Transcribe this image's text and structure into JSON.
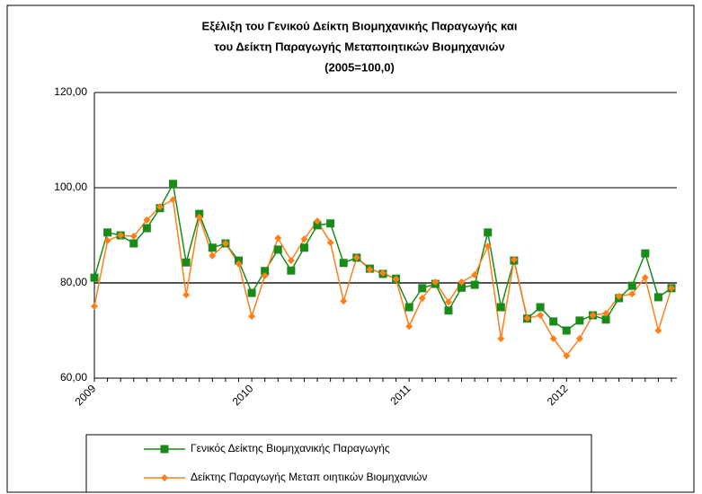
{
  "chart_data": {
    "type": "line",
    "title": [
      "Εξέλιξη του Γενικού Δείκτη Βιομηχανικής Παραγωγής και",
      "του Δείκτη Παραγωγής Μεταποιητικών Βιομηχανιών",
      "(2005=100,0)"
    ],
    "categories": [
      "2009",
      null,
      null,
      null,
      null,
      null,
      null,
      null,
      null,
      null,
      null,
      null,
      "2010",
      null,
      null,
      null,
      null,
      null,
      null,
      null,
      null,
      null,
      null,
      null,
      "2011",
      null,
      null,
      null,
      null,
      null,
      null,
      null,
      null,
      null,
      null,
      null,
      "2012",
      null,
      null,
      null,
      null,
      null,
      null,
      null,
      null
    ],
    "series": [
      {
        "name": "Γενικός Δείκτης Βιομηχανικής Παραγωγής",
        "color": "#1a8a1a",
        "marker": "square",
        "values": [
          81.1,
          90.6,
          90,
          88.3,
          91.5,
          95.7,
          100.8,
          84.3,
          94.5,
          87.4,
          88.3,
          84.7,
          77.9,
          82.5,
          87,
          82.6,
          87.4,
          92.1,
          92.5,
          84.2,
          85.3,
          83,
          81.9,
          80.9,
          74.9,
          78.9,
          79.8,
          74.2,
          79,
          79.6,
          90.6,
          74.9,
          84.7,
          72.5,
          74.9,
          71.9,
          70,
          72.1,
          73.2,
          72.3,
          76.8,
          79.4,
          86.2,
          77,
          78.9
        ]
      },
      {
        "name": "Δείκτης Παραγωγής Μεταπ οιητικών Βιομηχανιών",
        "color": "#ff7f1a",
        "marker": "diamond",
        "values": [
          75.1,
          88.9,
          90,
          89.8,
          93.2,
          96,
          97.5,
          77.5,
          93.8,
          85.7,
          88.3,
          84,
          73,
          81.5,
          89.4,
          84.7,
          89.2,
          93,
          88.5,
          76.2,
          85.3,
          82.8,
          82.1,
          80.8,
          70.9,
          76.8,
          80.2,
          76,
          80.2,
          81.7,
          87.7,
          68.3,
          84.9,
          72.6,
          73.2,
          68.3,
          64.7,
          68.3,
          73.2,
          73.6,
          77.2,
          77.7,
          81.1,
          70,
          78.9
        ]
      }
    ],
    "ylim": [
      60,
      120
    ],
    "yticks": [
      {
        "value": 60,
        "label": "60,00"
      },
      {
        "value": 80,
        "label": "80,00"
      },
      {
        "value": 100,
        "label": "100,00"
      },
      {
        "value": 120,
        "label": "120,00"
      }
    ],
    "grid": true
  }
}
